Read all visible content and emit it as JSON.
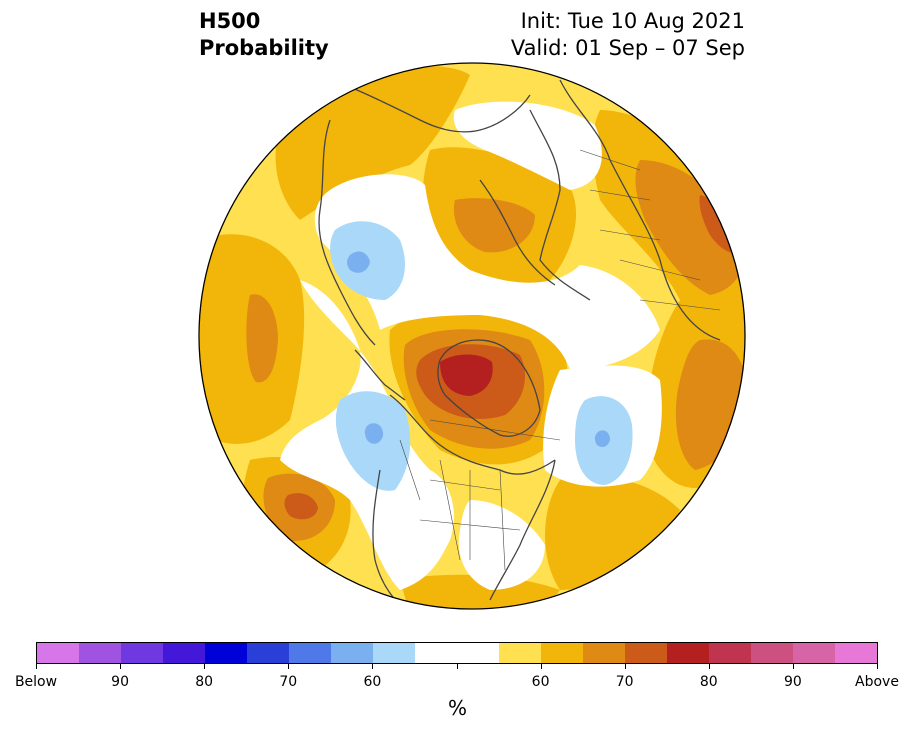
{
  "title": {
    "left_line1": "H500",
    "left_line2": "Probability",
    "right_line1": "Init: Tue 10 Aug 2021",
    "right_line2": "Valid: 01 Sep – 07 Sep"
  },
  "colorbar": {
    "colors": [
      "#d676e8",
      "#a052e0",
      "#7038e0",
      "#4418d8",
      "#0000d8",
      "#2a3fd8",
      "#4f78e8",
      "#7ab0f0",
      "#aad8f8",
      "#ffffff",
      "#ffffff",
      "#ffe050",
      "#f2b60a",
      "#de8a14",
      "#cc5a18",
      "#b42020",
      "#c03450",
      "#cc5080",
      "#d864a8",
      "#e878d8"
    ],
    "labels": [
      "Below",
      "90",
      "80",
      "70",
      "60",
      "",
      "60",
      "70",
      "80",
      "90",
      "Above"
    ],
    "unit": "%"
  },
  "map": {
    "background": "#ffe050",
    "colors": {
      "light_yellow": "#ffe050",
      "gold": "#f2b60a",
      "orange": "#de8a14",
      "dark_orange": "#cc5a18",
      "red": "#b42020",
      "white": "#ffffff",
      "light_blue": "#aad8f8",
      "blue": "#7ab0f0",
      "mid_blue": "#4f78e8",
      "coast": "#444444"
    }
  }
}
